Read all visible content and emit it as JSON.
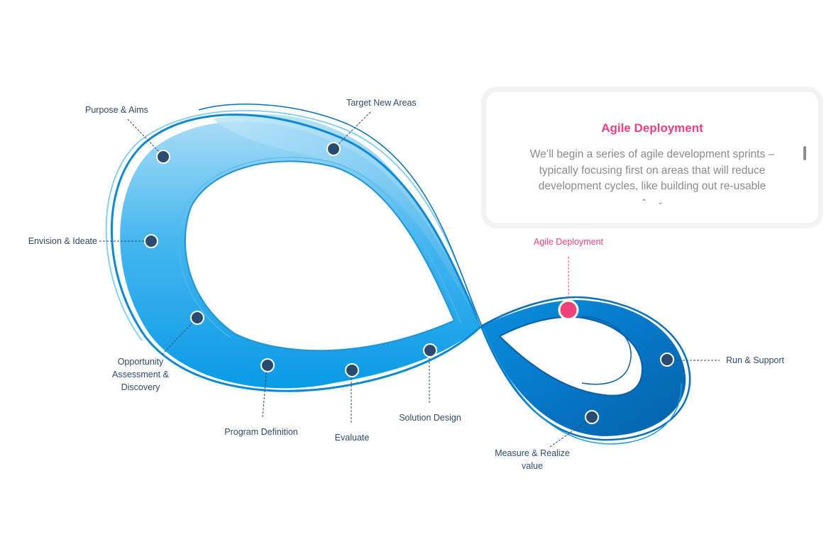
{
  "stages": [
    {
      "id": "purpose",
      "label": "Purpose & Aims"
    },
    {
      "id": "target",
      "label": "Target New Areas"
    },
    {
      "id": "envision",
      "label": "Envision & Ideate"
    },
    {
      "id": "opportunity",
      "label": "Opportunity Assessment & Discovery"
    },
    {
      "id": "program",
      "label": "Program Definition"
    },
    {
      "id": "evaluate",
      "label": "Evaluate"
    },
    {
      "id": "solution",
      "label": "Solution Design"
    },
    {
      "id": "agile",
      "label": "Agile Deployment",
      "active": true
    },
    {
      "id": "run",
      "label": "Run & Support"
    },
    {
      "id": "measure",
      "label": "Measure & Realize value"
    }
  ],
  "detail_card": {
    "title": "Agile Deployment",
    "body": "We’ll begin a series of agile development sprints – typically focusing first on areas that will reduce development cycles, like building out re-usable"
  },
  "colors": {
    "accent": "#f0407a",
    "node": "#2b4a6f",
    "loop_light": "#a6dcf6",
    "loop_mid": "#0a9ae6",
    "loop_dark": "#0562a8",
    "label": "#2f4a6b"
  }
}
